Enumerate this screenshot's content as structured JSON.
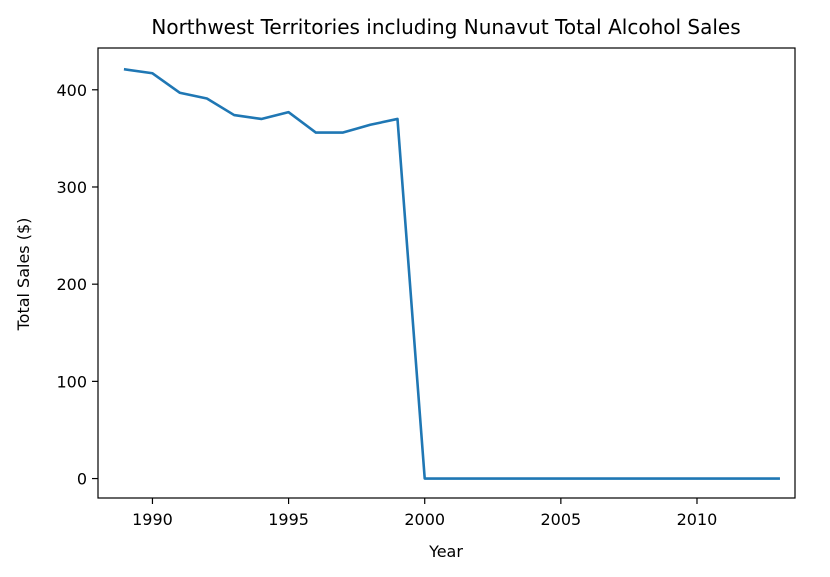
{
  "chart_data": {
    "type": "line",
    "title": "Northwest Territories including Nunavut Total Alcohol Sales",
    "xlabel": "Year",
    "ylabel": "Total Sales ($)",
    "xlim": [
      1988,
      2013.6
    ],
    "ylim": [
      -20,
      443
    ],
    "x_ticks": [
      1990,
      1995,
      2000,
      2005,
      2010
    ],
    "y_ticks": [
      0,
      100,
      200,
      300,
      400
    ],
    "grid": false,
    "series": [
      {
        "color": "#1f77b4",
        "x": [
          1989,
          1990,
          1991,
          1992,
          1993,
          1994,
          1995,
          1996,
          1997,
          1998,
          1999,
          2000,
          2001,
          2002,
          2003,
          2004,
          2005,
          2006,
          2007,
          2008,
          2009,
          2010,
          2011,
          2012,
          2013
        ],
        "values": [
          421,
          417,
          397,
          391,
          374,
          370,
          377,
          356,
          356,
          364,
          370,
          0,
          0,
          0,
          0,
          0,
          0,
          0,
          0,
          0,
          0,
          0,
          0,
          0,
          0
        ]
      }
    ]
  }
}
